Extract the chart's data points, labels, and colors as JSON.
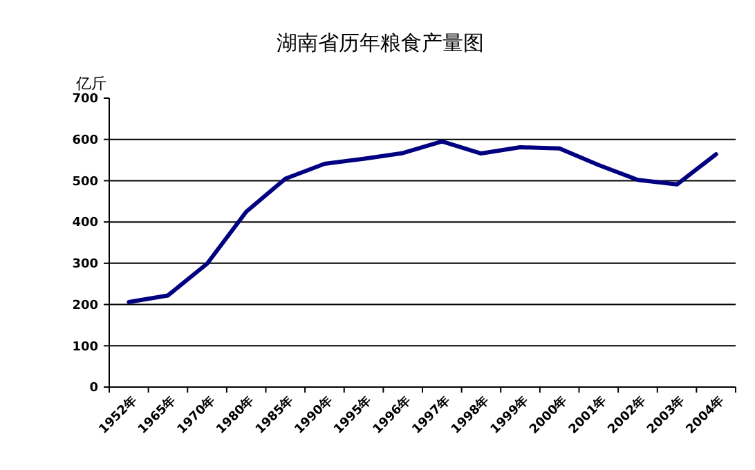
{
  "chart_data": {
    "type": "line",
    "title": "湖南省历年粮食产量图",
    "ylabel": "亿斤",
    "categories": [
      "1952年",
      "1965年",
      "1970年",
      "1980年",
      "1985年",
      "1990年",
      "1995年",
      "1996年",
      "1997年",
      "1998年",
      "1999年",
      "2000年",
      "2001年",
      "2002年",
      "2003年",
      "2004年"
    ],
    "series": [
      {
        "color": "#000080",
        "values": [
          206,
          222,
          299,
          425,
          505,
          541,
          553,
          567,
          595,
          566,
          581,
          578,
          538,
          502,
          491,
          564
        ]
      }
    ],
    "ylim": [
      0,
      700
    ],
    "yticks": [
      0,
      100,
      200,
      300,
      400,
      500,
      600,
      700
    ],
    "grid": "y",
    "marker": "none",
    "line_style": "solid"
  }
}
